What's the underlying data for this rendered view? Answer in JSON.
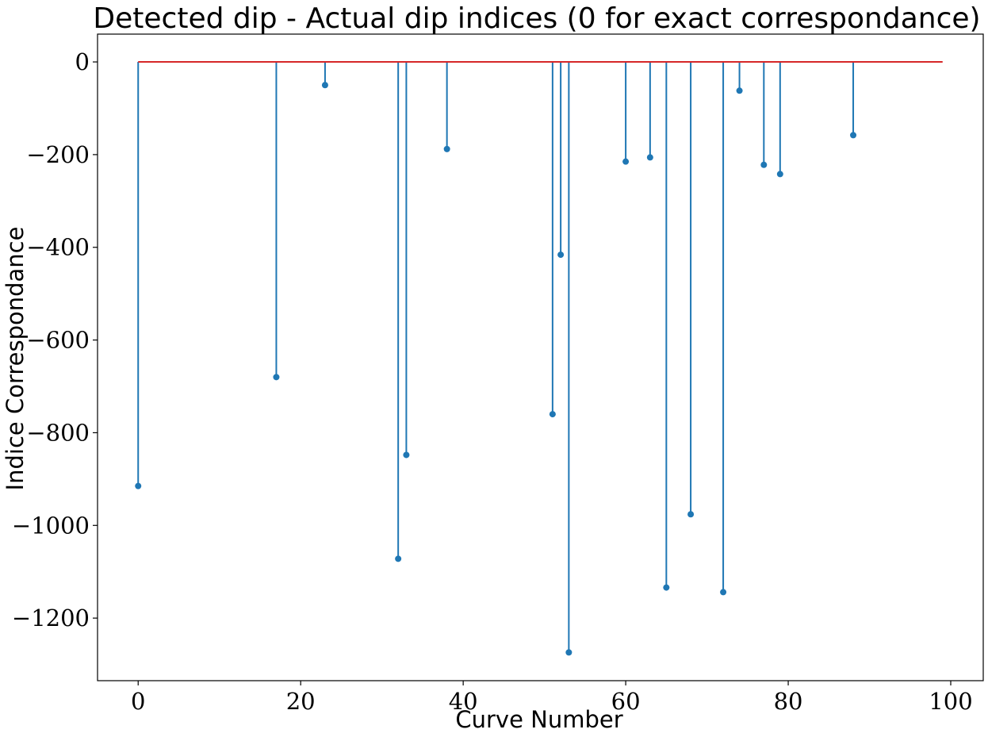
{
  "chart_data": {
    "type": "stem",
    "title": "Detected dip - Actual dip indices (0 for exact correspondance)",
    "xlabel": "Curve Number",
    "ylabel": "Indice Correspondance",
    "xlim": [
      -5,
      104
    ],
    "ylim": [
      -1335,
      60
    ],
    "xticks": [
      0,
      20,
      40,
      60,
      80,
      100
    ],
    "yticks": [
      0,
      -200,
      -400,
      -600,
      -800,
      -1000,
      -1200
    ],
    "baseline": {
      "value": 0,
      "x_start": 0,
      "x_end": 99,
      "color": "#d62728"
    },
    "stem_color": "#1f77b4",
    "grid": false,
    "points": [
      {
        "x": 0,
        "y": -915
      },
      {
        "x": 17,
        "y": -680
      },
      {
        "x": 23,
        "y": -50
      },
      {
        "x": 32,
        "y": -1072
      },
      {
        "x": 33,
        "y": -848
      },
      {
        "x": 38,
        "y": -188
      },
      {
        "x": 51,
        "y": -760
      },
      {
        "x": 52,
        "y": -416
      },
      {
        "x": 53,
        "y": -1274
      },
      {
        "x": 60,
        "y": -215
      },
      {
        "x": 63,
        "y": -206
      },
      {
        "x": 65,
        "y": -1134
      },
      {
        "x": 68,
        "y": -976
      },
      {
        "x": 72,
        "y": -1144
      },
      {
        "x": 74,
        "y": -62
      },
      {
        "x": 77,
        "y": -222
      },
      {
        "x": 79,
        "y": -242
      },
      {
        "x": 88,
        "y": -158
      }
    ]
  }
}
